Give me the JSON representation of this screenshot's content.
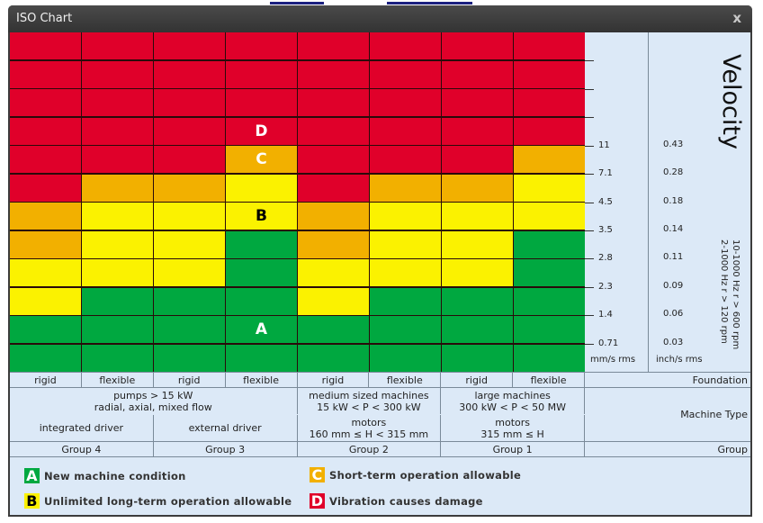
{
  "window": {
    "title": "ISO Chart",
    "close_label": "x"
  },
  "colors": {
    "A": "#00a840",
    "B": "#fbf200",
    "C": "#f2b000",
    "D": "#e0002a"
  },
  "axis": {
    "title": "Velocity",
    "mm_unit": "mm/s rms",
    "inch_unit": "inch/s rms",
    "mm_ticks": [
      "11",
      "7.1",
      "4.5",
      "3.5",
      "2.8",
      "2.3",
      "1.4",
      "0.71"
    ],
    "inch_ticks": [
      "0.43",
      "0.28",
      "0.18",
      "0.14",
      "0.11",
      "0.09",
      "0.06",
      "0.03"
    ],
    "freq_line1": "10-1000 Hz r > 600 rpm",
    "freq_line2": "2-1000 Hz r > 120 rpm"
  },
  "chart_data": {
    "type": "heatmap",
    "title": "ISO Chart - Velocity",
    "ylabel": "Velocity (mm/s rms / inch/s rms)",
    "row_boundaries_mm_s": [
      11,
      7.1,
      4.5,
      3.5,
      2.8,
      2.3,
      1.4,
      0.71
    ],
    "row_boundaries_in_s": [
      0.43,
      0.28,
      0.18,
      0.14,
      0.11,
      0.09,
      0.06,
      0.03
    ],
    "rows_top_to_bottom": 12,
    "columns": [
      {
        "group": "Group 4",
        "foundation": "rigid",
        "zones": [
          "D",
          "D",
          "D",
          "D",
          "D",
          "D",
          "C",
          "C",
          "B",
          "B",
          "A",
          "A"
        ]
      },
      {
        "group": "Group 4",
        "foundation": "flexible",
        "zones": [
          "D",
          "D",
          "D",
          "D",
          "D",
          "C",
          "B",
          "B",
          "B",
          "A",
          "A",
          "A"
        ]
      },
      {
        "group": "Group 3",
        "foundation": "rigid",
        "zones": [
          "D",
          "D",
          "D",
          "D",
          "D",
          "C",
          "B",
          "B",
          "B",
          "A",
          "A",
          "A"
        ]
      },
      {
        "group": "Group 3",
        "foundation": "flexible",
        "zones": [
          "D",
          "D",
          "D",
          "D",
          "C",
          "B",
          "B",
          "A",
          "A",
          "A",
          "A",
          "A"
        ]
      },
      {
        "group": "Group 2",
        "foundation": "rigid",
        "zones": [
          "D",
          "D",
          "D",
          "D",
          "D",
          "D",
          "C",
          "C",
          "B",
          "B",
          "A",
          "A"
        ]
      },
      {
        "group": "Group 2",
        "foundation": "flexible",
        "zones": [
          "D",
          "D",
          "D",
          "D",
          "D",
          "C",
          "B",
          "B",
          "B",
          "A",
          "A",
          "A"
        ]
      },
      {
        "group": "Group 1",
        "foundation": "rigid",
        "zones": [
          "D",
          "D",
          "D",
          "D",
          "D",
          "C",
          "B",
          "B",
          "B",
          "A",
          "A",
          "A"
        ]
      },
      {
        "group": "Group 1",
        "foundation": "flexible",
        "zones": [
          "D",
          "D",
          "D",
          "D",
          "C",
          "B",
          "B",
          "A",
          "A",
          "A",
          "A",
          "A"
        ]
      }
    ],
    "zone_labels": [
      {
        "zone": "D",
        "column": 4,
        "row": 4
      },
      {
        "zone": "C",
        "column": 4,
        "row": 5
      },
      {
        "zone": "B",
        "column": 4,
        "row": 7
      },
      {
        "zone": "A",
        "column": 4,
        "row": 11
      }
    ]
  },
  "table": {
    "foundation_label": "Foundation",
    "machine_type_label": "Machine Type",
    "group_label": "Group",
    "foundations": [
      "rigid",
      "flexible",
      "rigid",
      "flexible",
      "rigid",
      "flexible",
      "rigid",
      "flexible"
    ],
    "machine_types": [
      {
        "line1": "pumps > 15 kW",
        "line2": "radial, axial, mixed flow"
      },
      {
        "line1": "medium sized machines",
        "line2": "15 kW < P < 300 kW"
      },
      {
        "line1": "large machines",
        "line2": "300 kW < P < 50 MW"
      }
    ],
    "drivers": [
      {
        "line1": "integrated driver",
        "line2": ""
      },
      {
        "line1": "external driver",
        "line2": ""
      },
      {
        "line1": "motors",
        "line2": "160 mm ≤ H < 315 mm"
      },
      {
        "line1": "motors",
        "line2": "315 mm ≤ H"
      }
    ],
    "groups": [
      "Group 4",
      "Group 3",
      "Group 2",
      "Group 1"
    ]
  },
  "legend": [
    {
      "letter": "A",
      "text": "New machine condition"
    },
    {
      "letter": "B",
      "text": "Unlimited long-term operation allowable"
    },
    {
      "letter": "C",
      "text": "Short-term operation allowable"
    },
    {
      "letter": "D",
      "text": "Vibration causes damage"
    }
  ]
}
